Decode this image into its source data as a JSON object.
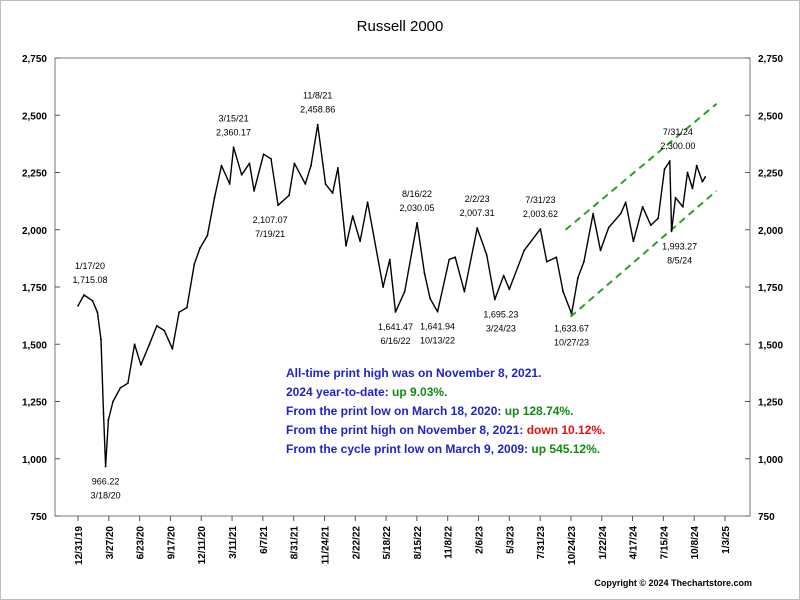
{
  "chart_data": {
    "type": "line",
    "title": "Russell 2000",
    "ylim": [
      750,
      2750
    ],
    "y_ticks": [
      "2,750",
      "2,500",
      "2,250",
      "2,000",
      "1,750",
      "1,500",
      "1,250",
      "1,000",
      "750"
    ],
    "x_tick_labels": [
      "12/31/19",
      "3/27/20",
      "6/23/20",
      "9/17/20",
      "12/11/20",
      "3/11/21",
      "6/7/21",
      "8/31/21",
      "11/24/21",
      "2/22/22",
      "5/18/22",
      "8/15/22",
      "11/8/22",
      "2/6/23",
      "5/3/23",
      "7/31/23",
      "10/24/23",
      "1/22/24",
      "4/17/24",
      "7/15/24",
      "10/8/24",
      "1/3/25"
    ],
    "grid": false,
    "series": [
      {
        "values": [
          {
            "x": "2019-12-31",
            "y": 1668
          },
          {
            "x": "2020-01-17",
            "y": 1715.08
          },
          {
            "x": "2020-02-10",
            "y": 1690
          },
          {
            "x": "2020-02-24",
            "y": 1640
          },
          {
            "x": "2020-03-05",
            "y": 1520
          },
          {
            "x": "2020-03-12",
            "y": 1200
          },
          {
            "x": "2020-03-18",
            "y": 966.22
          },
          {
            "x": "2020-03-26",
            "y": 1170
          },
          {
            "x": "2020-04-08",
            "y": 1250
          },
          {
            "x": "2020-04-29",
            "y": 1310
          },
          {
            "x": "2020-05-20",
            "y": 1330
          },
          {
            "x": "2020-06-08",
            "y": 1500
          },
          {
            "x": "2020-06-26",
            "y": 1410
          },
          {
            "x": "2020-07-20",
            "y": 1500
          },
          {
            "x": "2020-08-10",
            "y": 1580
          },
          {
            "x": "2020-08-31",
            "y": 1560
          },
          {
            "x": "2020-09-23",
            "y": 1480
          },
          {
            "x": "2020-10-12",
            "y": 1640
          },
          {
            "x": "2020-11-03",
            "y": 1660
          },
          {
            "x": "2020-11-24",
            "y": 1850
          },
          {
            "x": "2020-12-10",
            "y": 1920
          },
          {
            "x": "2020-12-31",
            "y": 1975
          },
          {
            "x": "2021-01-20",
            "y": 2140
          },
          {
            "x": "2021-02-09",
            "y": 2280
          },
          {
            "x": "2021-03-04",
            "y": 2200
          },
          {
            "x": "2021-03-15",
            "y": 2360.17
          },
          {
            "x": "2021-04-07",
            "y": 2240
          },
          {
            "x": "2021-04-29",
            "y": 2290
          },
          {
            "x": "2021-05-12",
            "y": 2170
          },
          {
            "x": "2021-06-08",
            "y": 2330
          },
          {
            "x": "2021-06-29",
            "y": 2310
          },
          {
            "x": "2021-07-19",
            "y": 2107.07
          },
          {
            "x": "2021-08-19",
            "y": 2150
          },
          {
            "x": "2021-09-03",
            "y": 2290
          },
          {
            "x": "2021-10-04",
            "y": 2200
          },
          {
            "x": "2021-10-20",
            "y": 2280
          },
          {
            "x": "2021-11-08",
            "y": 2458.86
          },
          {
            "x": "2021-11-30",
            "y": 2200
          },
          {
            "x": "2021-12-20",
            "y": 2160
          },
          {
            "x": "2022-01-04",
            "y": 2270
          },
          {
            "x": "2022-01-27",
            "y": 1930
          },
          {
            "x": "2022-02-15",
            "y": 2060
          },
          {
            "x": "2022-03-08",
            "y": 1950
          },
          {
            "x": "2022-03-29",
            "y": 2120
          },
          {
            "x": "2022-05-12",
            "y": 1750
          },
          {
            "x": "2022-05-31",
            "y": 1870
          },
          {
            "x": "2022-06-16",
            "y": 1641.47
          },
          {
            "x": "2022-07-12",
            "y": 1730
          },
          {
            "x": "2022-08-16",
            "y": 2030.05
          },
          {
            "x": "2022-09-06",
            "y": 1810
          },
          {
            "x": "2022-09-22",
            "y": 1700
          },
          {
            "x": "2022-10-13",
            "y": 1641.94
          },
          {
            "x": "2022-11-15",
            "y": 1870
          },
          {
            "x": "2022-12-02",
            "y": 1880
          },
          {
            "x": "2022-12-28",
            "y": 1730
          },
          {
            "x": "2023-02-02",
            "y": 2007.31
          },
          {
            "x": "2023-03-01",
            "y": 1890
          },
          {
            "x": "2023-03-24",
            "y": 1695.23
          },
          {
            "x": "2023-04-18",
            "y": 1800
          },
          {
            "x": "2023-05-04",
            "y": 1740
          },
          {
            "x": "2023-06-15",
            "y": 1910
          },
          {
            "x": "2023-07-31",
            "y": 2003.62
          },
          {
            "x": "2023-08-18",
            "y": 1860
          },
          {
            "x": "2023-09-14",
            "y": 1880
          },
          {
            "x": "2023-10-03",
            "y": 1730
          },
          {
            "x": "2023-10-27",
            "y": 1633.67
          },
          {
            "x": "2023-11-14",
            "y": 1790
          },
          {
            "x": "2023-12-01",
            "y": 1860
          },
          {
            "x": "2023-12-27",
            "y": 2070
          },
          {
            "x": "2024-01-17",
            "y": 1910
          },
          {
            "x": "2024-02-09",
            "y": 2010
          },
          {
            "x": "2024-03-14",
            "y": 2070
          },
          {
            "x": "2024-03-28",
            "y": 2120
          },
          {
            "x": "2024-04-19",
            "y": 1950
          },
          {
            "x": "2024-05-15",
            "y": 2100
          },
          {
            "x": "2024-06-07",
            "y": 2020
          },
          {
            "x": "2024-06-28",
            "y": 2050
          },
          {
            "x": "2024-07-16",
            "y": 2265
          },
          {
            "x": "2024-07-31",
            "y": 2300.0
          },
          {
            "x": "2024-08-05",
            "y": 1993.27
          },
          {
            "x": "2024-08-16",
            "y": 2140
          },
          {
            "x": "2024-09-06",
            "y": 2100
          },
          {
            "x": "2024-09-19",
            "y": 2250
          },
          {
            "x": "2024-10-03",
            "y": 2180
          },
          {
            "x": "2024-10-15",
            "y": 2280
          },
          {
            "x": "2024-10-31",
            "y": 2210
          },
          {
            "x": "2024-11-08",
            "y": 2230
          }
        ]
      }
    ],
    "channel_lines": [
      {
        "x1": "2023-10-10",
        "y1": 2000,
        "x2": "2024-12-10",
        "y2": 2550
      },
      {
        "x1": "2023-10-24",
        "y1": 1620,
        "x2": "2024-12-10",
        "y2": 2170
      }
    ],
    "annotations": [
      {
        "date_label": "1/17/20",
        "value_label": "1,715.08",
        "x": "2020-01-17",
        "y": 1715.08,
        "pos": "above"
      },
      {
        "date_label": "3/18/20",
        "value_label": "966.22",
        "x": "2020-03-18",
        "y": 966.22,
        "pos": "below"
      },
      {
        "date_label": "3/15/21",
        "value_label": "2,360.17",
        "x": "2021-03-15",
        "y": 2360.17,
        "pos": "above"
      },
      {
        "date_label": "7/19/21",
        "value_label": "2,107.07",
        "x": "2021-07-19",
        "y": 2107.07,
        "pos": "below"
      },
      {
        "date_label": "11/8/21",
        "value_label": "2,458.86",
        "x": "2021-11-08",
        "y": 2458.86,
        "pos": "above"
      },
      {
        "date_label": "6/16/22",
        "value_label": "1,641.47",
        "x": "2022-06-16",
        "y": 1641.47,
        "pos": "below"
      },
      {
        "date_label": "8/16/22",
        "value_label": "2,030.05",
        "x": "2022-08-16",
        "y": 2030.05,
        "pos": "above"
      },
      {
        "date_label": "10/13/22",
        "value_label": "1,641.94",
        "x": "2022-10-13",
        "y": 1641.94,
        "pos": "below"
      },
      {
        "date_label": "2/2/23",
        "value_label": "2,007.31",
        "x": "2023-02-02",
        "y": 2007.31,
        "pos": "above"
      },
      {
        "date_label": "3/24/23",
        "value_label": "1,695.23",
        "x": "2023-03-24",
        "y": 1695.23,
        "pos": "below"
      },
      {
        "date_label": "7/31/23",
        "value_label": "2,003.62",
        "x": "2023-07-31",
        "y": 2003.62,
        "pos": "above"
      },
      {
        "date_label": "10/27/23",
        "value_label": "1,633.67",
        "x": "2023-10-27",
        "y": 1633.67,
        "pos": "below"
      },
      {
        "date_label": "7/31/24",
        "value_label": "2,300.00",
        "x": "2024-07-31",
        "y": 2300.0,
        "pos": "above"
      },
      {
        "date_label": "8/5/24",
        "value_label": "1,993.27",
        "x": "2024-08-05",
        "y": 1993.27,
        "pos": "below"
      }
    ],
    "colors": {
      "line": "#000000",
      "channel": "#2ca02c",
      "note_blue": "#1e24c8",
      "note_green": "#118a12",
      "note_red": "#e01010"
    }
  },
  "notes": {
    "line1": "All-time print high was on November 8, 2021.",
    "line2_prefix": "2024 year-to-date: ",
    "line2_value": "up 9.03%.",
    "line3_prefix": "From the print low on March 18, 2020:  ",
    "line3_value": "up 128.74%.",
    "line4_prefix": "From the print high on November 8, 2021:  ",
    "line4_value": "down 10.12%.",
    "line5_prefix": "From the cycle print low on March 9, 2009:  ",
    "line5_value": "up 545.12%."
  },
  "copyright": "Copyright © 2024 Thechartstore.com"
}
